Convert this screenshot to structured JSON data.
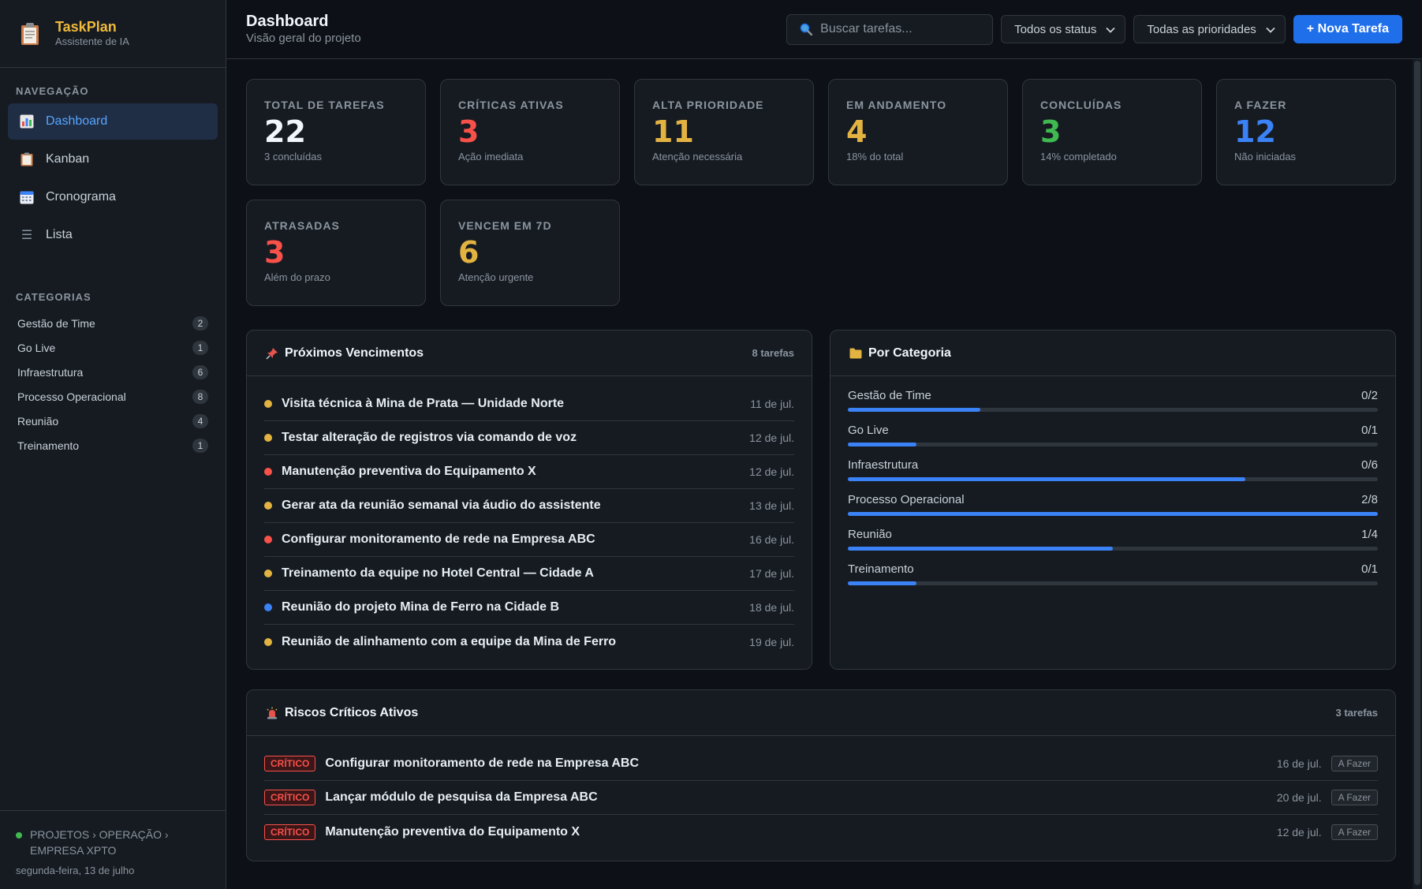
{
  "brand": {
    "title": "TaskPlan",
    "subtitle": "Assistente de IA"
  },
  "sidebar": {
    "nav_label": "NAVEGAÇÃO",
    "nav": [
      {
        "label": "Dashboard",
        "icon": "chart-icon",
        "active": true
      },
      {
        "label": "Kanban",
        "icon": "clipboard-icon"
      },
      {
        "label": "Cronograma",
        "icon": "calendar-icon"
      },
      {
        "label": "Lista",
        "icon": "list-icon"
      }
    ],
    "categories_label": "CATEGORIAS",
    "categories": [
      {
        "label": "Gestão de Time",
        "count": "2"
      },
      {
        "label": "Go Live",
        "count": "1"
      },
      {
        "label": "Infraestrutura",
        "count": "6"
      },
      {
        "label": "Processo Operacional",
        "count": "8"
      },
      {
        "label": "Reunião",
        "count": "4"
      },
      {
        "label": "Treinamento",
        "count": "1"
      }
    ],
    "footer": {
      "breadcrumb": "PROJETOS › OPERAÇÃO › EMPRESA XPTO",
      "date": "segunda-feira, 13 de julho"
    }
  },
  "header": {
    "title": "Dashboard",
    "subtitle": "Visão geral do projeto",
    "search_placeholder": "Buscar tarefas...",
    "status_filter": "Todos os status",
    "priority_filter": "Todas as prioridades",
    "new_task": "+ Nova Tarefa"
  },
  "stats": [
    {
      "label": "TOTAL DE TAREFAS",
      "value": "22",
      "note": "3 concluídas",
      "color": "#f0f6fc"
    },
    {
      "label": "CRÍTICAS ATIVAS",
      "value": "3",
      "note": "Ação imediata",
      "color": "#f85149"
    },
    {
      "label": "ALTA PRIORIDADE",
      "value": "11",
      "note": "Atenção necessária",
      "color": "#e3b341"
    },
    {
      "label": "EM ANDAMENTO",
      "value": "4",
      "note": "18% do total",
      "color": "#e3b341"
    },
    {
      "label": "CONCLUÍDAS",
      "value": "3",
      "note": "14% completado",
      "color": "#3fb950"
    },
    {
      "label": "A FAZER",
      "value": "12",
      "note": "Não iniciadas",
      "color": "#3b82f6"
    },
    {
      "label": "ATRASADAS",
      "value": "3",
      "note": "Além do prazo",
      "color": "#f85149"
    },
    {
      "label": "VENCEM EM 7D",
      "value": "6",
      "note": "Atenção urgente",
      "color": "#e3b341"
    }
  ],
  "upcoming": {
    "title": "Próximos Vencimentos",
    "meta": "8 tarefas",
    "items": [
      {
        "title": "Visita técnica à Mina de Prata — Unidade Norte",
        "date": "11 de jul.",
        "color": "#e3b341"
      },
      {
        "title": "Testar alteração de registros via comando de voz",
        "date": "12 de jul.",
        "color": "#e3b341"
      },
      {
        "title": "Manutenção preventiva do Equipamento X",
        "date": "12 de jul.",
        "color": "#f85149"
      },
      {
        "title": "Gerar ata da reunião semanal via áudio do assistente",
        "date": "13 de jul.",
        "color": "#e3b341"
      },
      {
        "title": "Configurar monitoramento de rede na Empresa ABC",
        "date": "16 de jul.",
        "color": "#f85149"
      },
      {
        "title": "Treinamento da equipe no Hotel Central — Cidade A",
        "date": "17 de jul.",
        "color": "#e3b341"
      },
      {
        "title": "Reunião do projeto Mina de Ferro na Cidade B",
        "date": "18 de jul.",
        "color": "#3b82f6"
      },
      {
        "title": "Reunião de alinhamento com a equipe da Mina de Ferro",
        "date": "19 de jul.",
        "color": "#e3b341"
      }
    ]
  },
  "by_category": {
    "title": "Por Categoria",
    "items": [
      {
        "label": "Gestão de Time",
        "count": "0/2",
        "fill": 0.25
      },
      {
        "label": "Go Live",
        "count": "0/1",
        "fill": 0.13
      },
      {
        "label": "Infraestrutura",
        "count": "0/6",
        "fill": 0.75
      },
      {
        "label": "Processo Operacional",
        "count": "2/8",
        "fill": 1.0
      },
      {
        "label": "Reunião",
        "count": "1/4",
        "fill": 0.5
      },
      {
        "label": "Treinamento",
        "count": "0/1",
        "fill": 0.13
      }
    ]
  },
  "risks": {
    "title": "Riscos Críticos Ativos",
    "meta": "3 tarefas",
    "items": [
      {
        "badge": "CRÍTICO",
        "title": "Configurar monitoramento de rede na Empresa ABC",
        "date": "16 de jul.",
        "status": "A Fazer"
      },
      {
        "badge": "CRÍTICO",
        "title": "Lançar módulo de pesquisa da Empresa ABC",
        "date": "20 de jul.",
        "status": "A Fazer"
      },
      {
        "badge": "CRÍTICO",
        "title": "Manutenção preventiva do Equipamento X",
        "date": "12 de jul.",
        "status": "A Fazer"
      }
    ]
  }
}
